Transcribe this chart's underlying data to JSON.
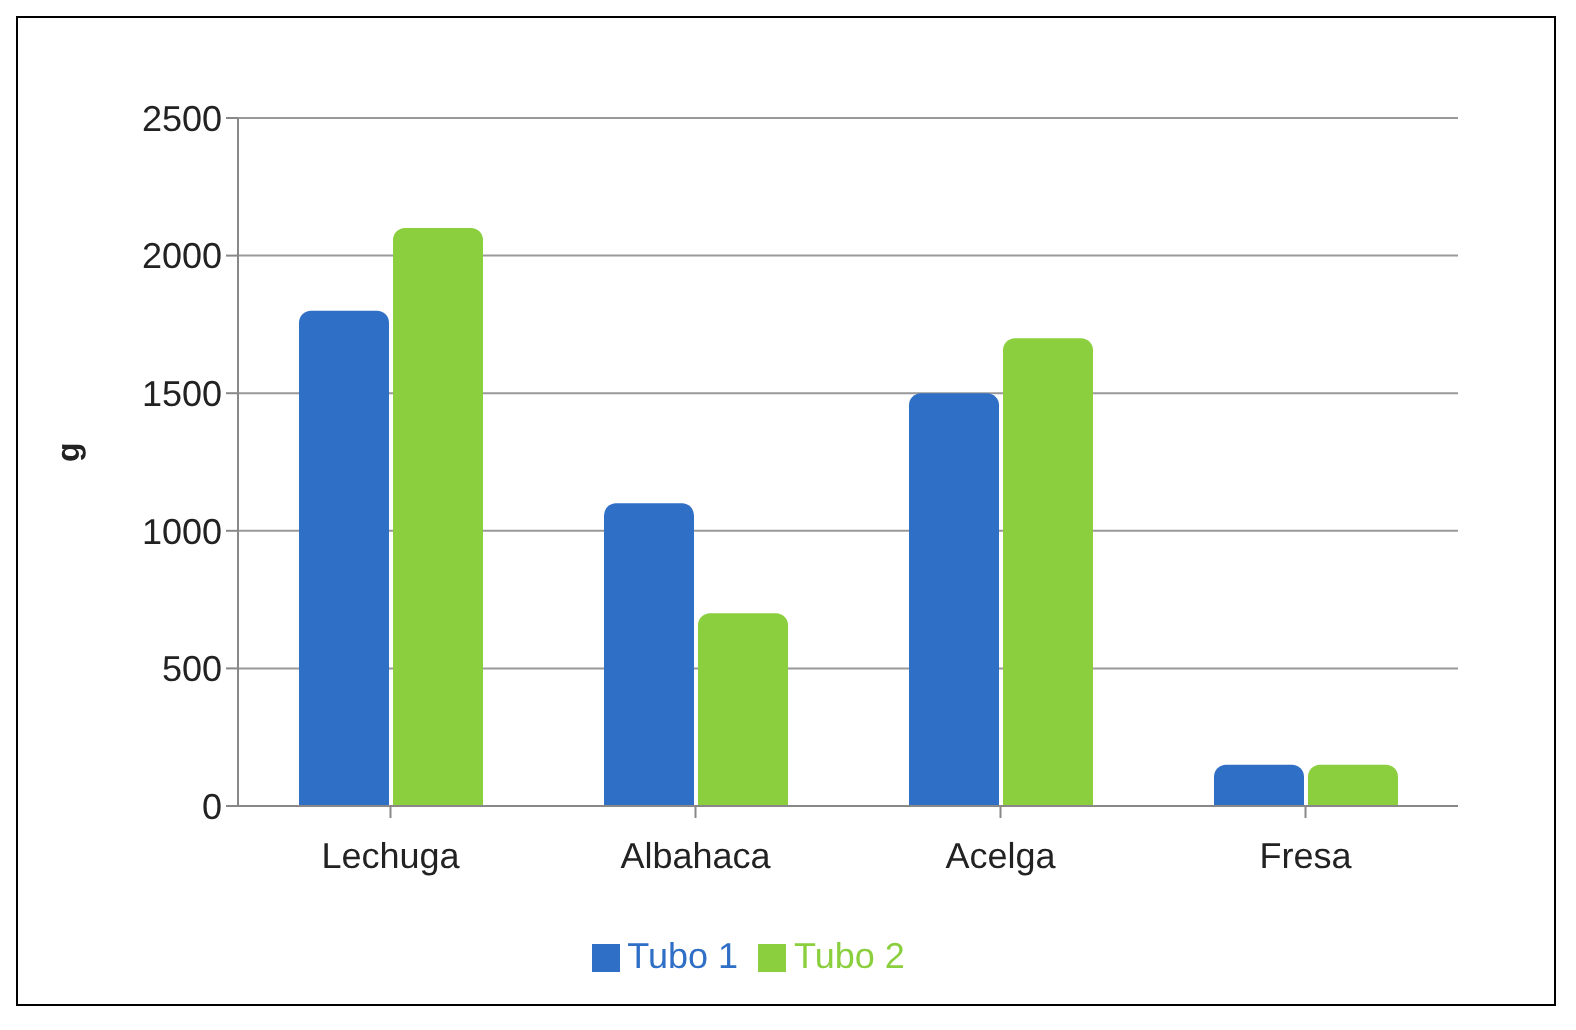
{
  "chart_data": {
    "type": "bar",
    "ylabel": "g",
    "categories": [
      "Lechuga",
      "Albahaca",
      "Acelga",
      "Fresa"
    ],
    "series": [
      {
        "name": "Tubo 1",
        "color": "#2f6fc6",
        "values": [
          1800,
          1100,
          1500,
          150
        ]
      },
      {
        "name": "Tubo 2",
        "color": "#8bcf3f",
        "values": [
          2100,
          700,
          1700,
          150
        ]
      }
    ],
    "ylim": [
      0,
      2500
    ],
    "yticks": [
      0,
      500,
      1000,
      1500,
      2000,
      2500
    ],
    "grid": "y",
    "legend": "bottom"
  }
}
